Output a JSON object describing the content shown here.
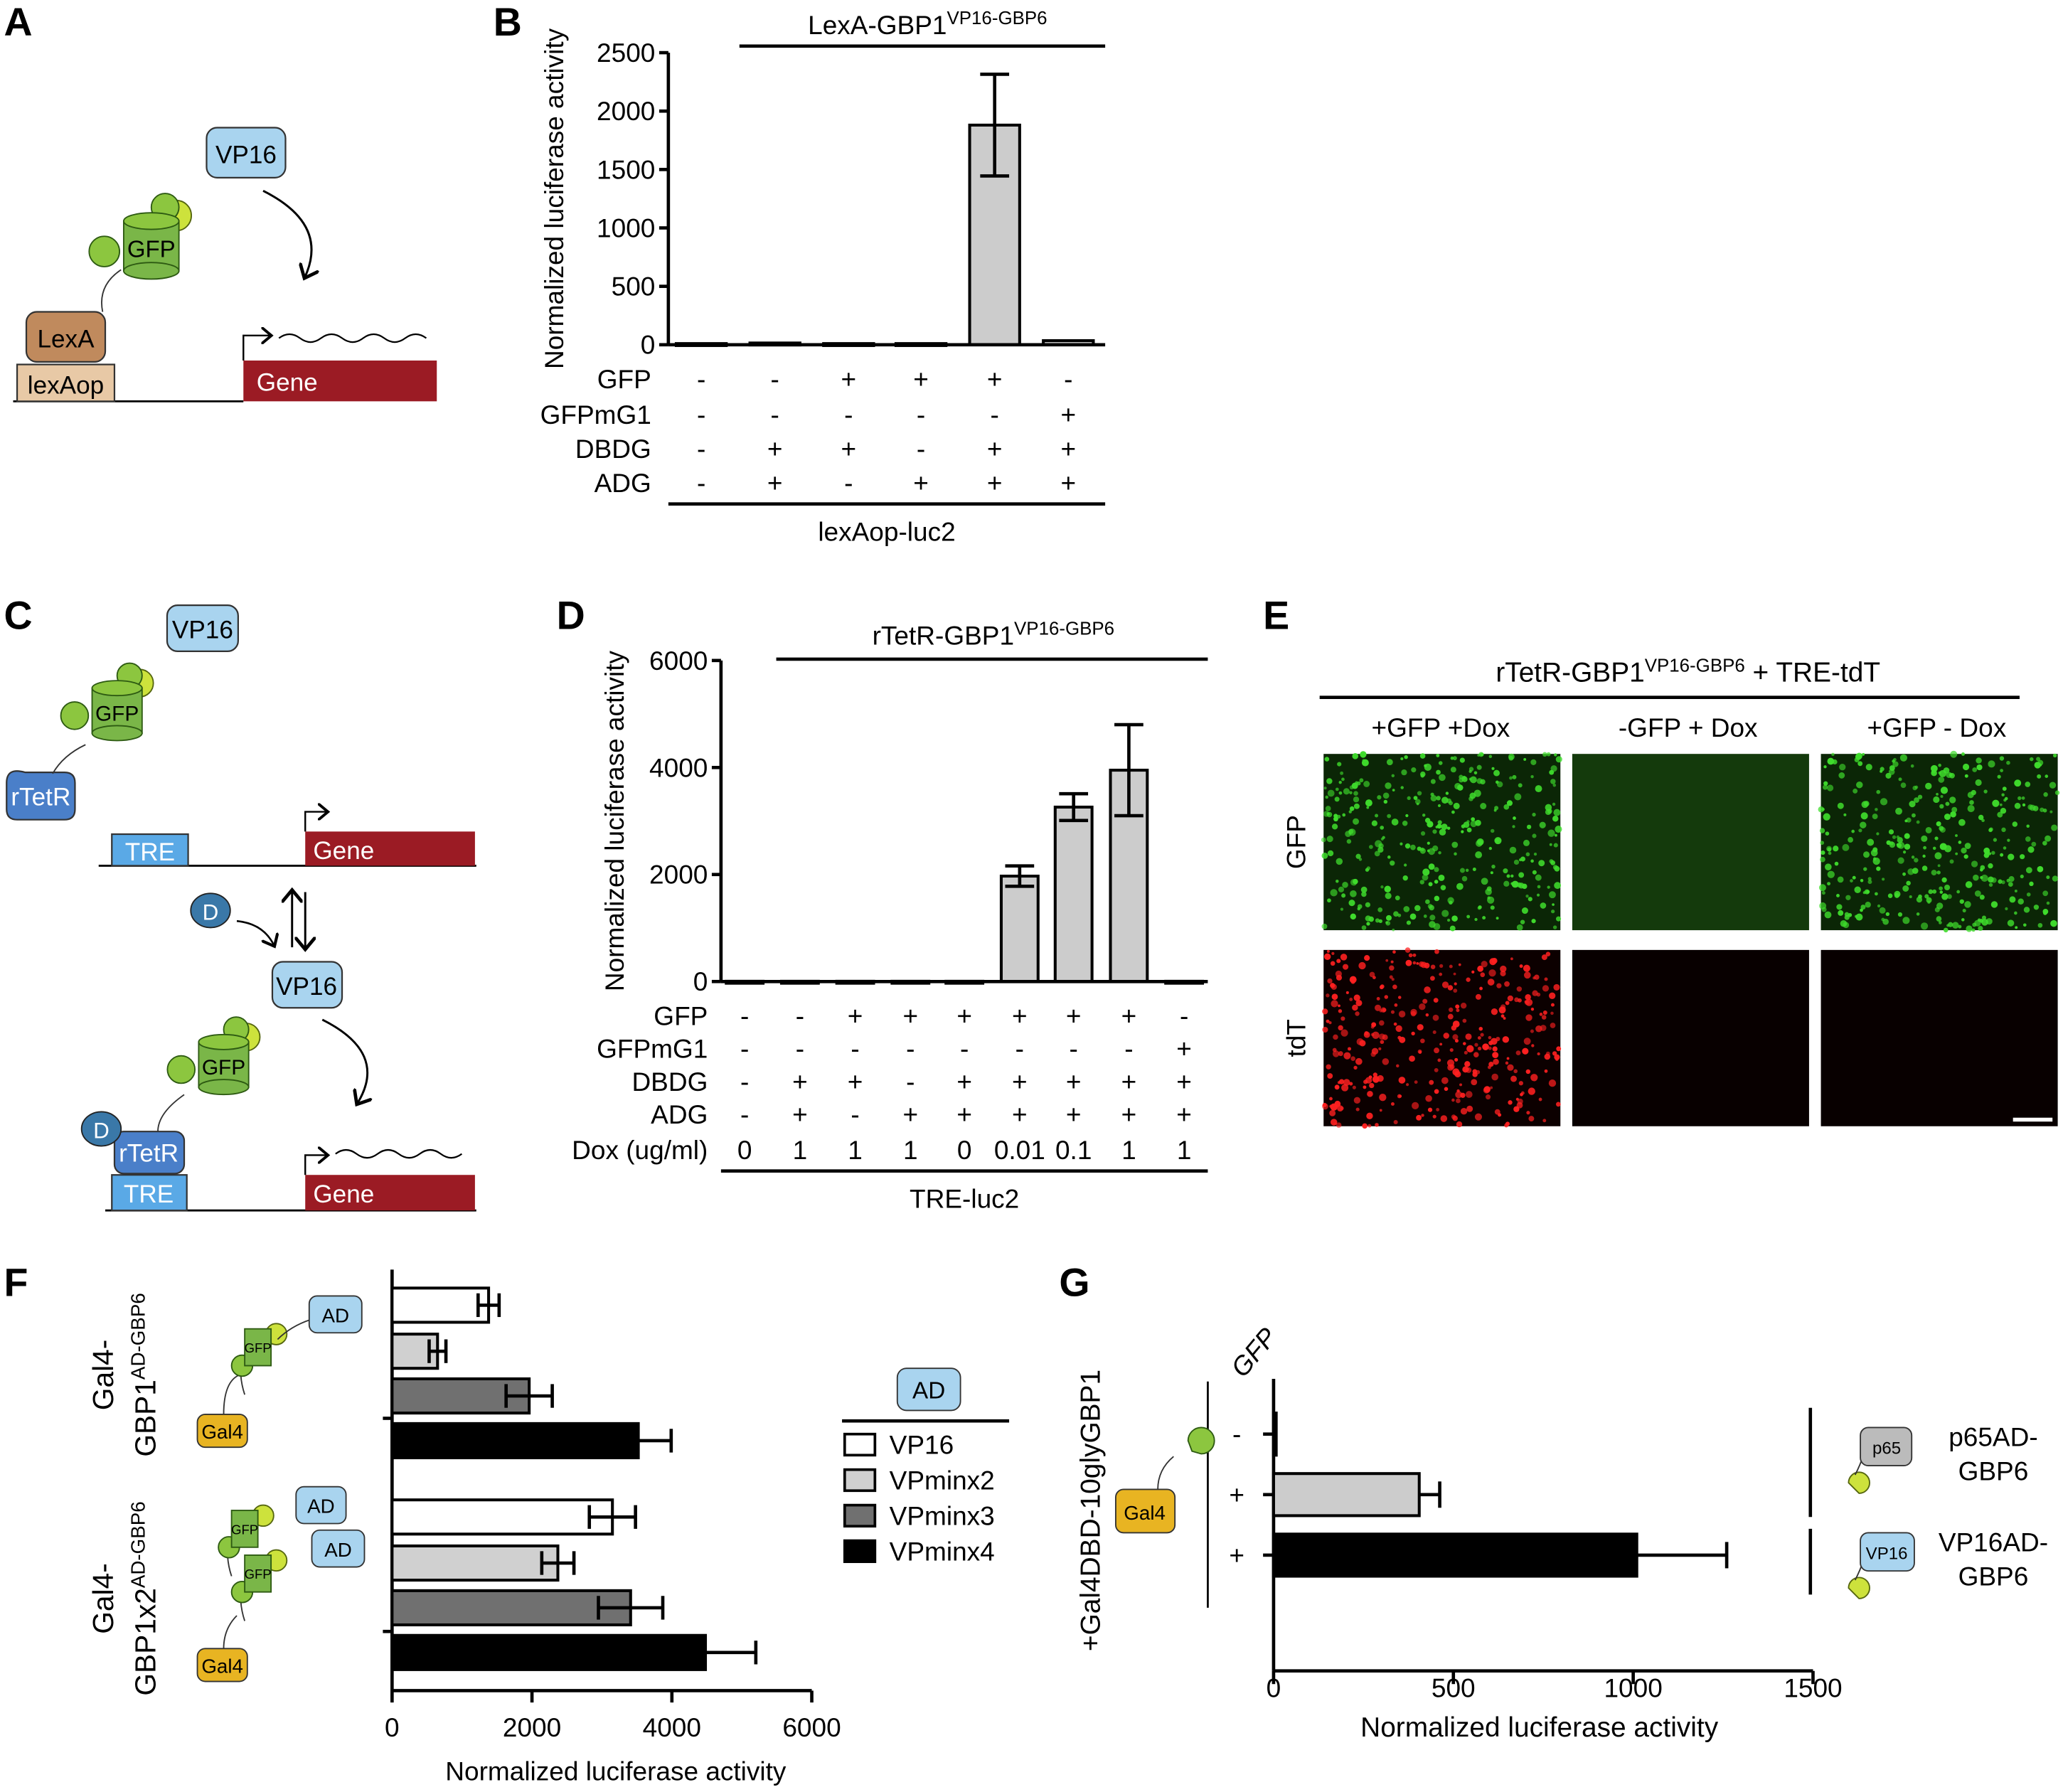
{
  "panel_labels": {
    "A": "A",
    "B": "B",
    "C": "C",
    "D": "D",
    "E": "E",
    "F": "F",
    "G": "G"
  },
  "panel_a": {
    "vp16": "VP16",
    "gfp": "GFP",
    "lexa": "LexA",
    "lexaop": "lexAop",
    "gene": "Gene"
  },
  "panel_c": {
    "vp16": "VP16",
    "gfp": "GFP",
    "rtetr": "rTetR",
    "tre": "TRE",
    "gene": "Gene",
    "dox": "D"
  },
  "panel_e": {
    "title": "rTetR-GBP1",
    "title_sup": "VP16-GBP6",
    "title_suffix": " + TRE-tdT",
    "columns": [
      "+GFP +Dox",
      "-GFP + Dox",
      "+GFP - Dox"
    ],
    "rows": [
      "GFP",
      "tdT"
    ],
    "colors": {
      "gfp": "#3fdc2c",
      "tdt": "#ff2020"
    }
  },
  "chart_data": [
    {
      "id": "B",
      "type": "bar",
      "title": "LexA-GBP1",
      "title_sup": "VP16-GBP6",
      "xlabel": "",
      "ylabel": "Normalized luciferase activity",
      "ylim": [
        0,
        2500
      ],
      "yticks": [
        0,
        500,
        1000,
        1500,
        2000,
        2500
      ],
      "values": [
        10,
        15,
        10,
        10,
        1880,
        35
      ],
      "errors": [
        0,
        0,
        0,
        0,
        435,
        0
      ],
      "conditions": [
        {
          "label": "GFP",
          "values": [
            "-",
            "-",
            "+",
            "+",
            "+",
            "-"
          ]
        },
        {
          "label": "GFPmG1",
          "values": [
            "-",
            "-",
            "-",
            "-",
            "-",
            "+"
          ]
        },
        {
          "label": "DBDG",
          "values": [
            "-",
            "+",
            "+",
            "-",
            "+",
            "+"
          ]
        },
        {
          "label": "ADG",
          "values": [
            "-",
            "+",
            "-",
            "+",
            "+",
            "+"
          ]
        }
      ],
      "footer": "lexAop-luc2",
      "bar_color": "#cccccc",
      "grid": false
    },
    {
      "id": "D",
      "type": "bar",
      "title": "rTetR-GBP1",
      "title_sup": "VP16-GBP6",
      "xlabel": "",
      "ylabel": "Normalized luciferase activity",
      "ylim": [
        0,
        6000
      ],
      "yticks": [
        0,
        2000,
        4000,
        6000
      ],
      "values": [
        5,
        5,
        5,
        5,
        5,
        1970,
        3260,
        3950,
        5
      ],
      "errors": [
        0,
        0,
        0,
        0,
        0,
        190,
        250,
        850,
        0
      ],
      "conditions": [
        {
          "label": "GFP",
          "values": [
            "-",
            "-",
            "+",
            "+",
            "+",
            "+",
            "+",
            "+",
            "-"
          ]
        },
        {
          "label": "GFPmG1",
          "values": [
            "-",
            "-",
            "-",
            "-",
            "-",
            "-",
            "-",
            "-",
            "+"
          ]
        },
        {
          "label": "DBDG",
          "values": [
            "-",
            "+",
            "+",
            "-",
            "+",
            "+",
            "+",
            "+",
            "+"
          ]
        },
        {
          "label": "ADG",
          "values": [
            "-",
            "+",
            "-",
            "+",
            "+",
            "+",
            "+",
            "+",
            "+"
          ]
        },
        {
          "label": "Dox (ug/ml)",
          "values": [
            "0",
            "1",
            "1",
            "1",
            "0",
            "0.01",
            "0.1",
            "1",
            "1"
          ]
        }
      ],
      "footer": "TRE-luc2",
      "bar_color": "#cccccc",
      "grid": false
    },
    {
      "id": "F",
      "type": "bar",
      "orientation": "horizontal",
      "xlabel": "Normalized luciferase activity",
      "xlim": [
        0,
        6000
      ],
      "xticks": [
        0,
        2000,
        4000,
        6000
      ],
      "groups": [
        {
          "line1": "Gal4-",
          "line2": "GBP1",
          "sup": "AD-GBP6"
        },
        {
          "line1": "Gal4-",
          "line2": "GBP1x2",
          "sup": "AD-GBP6"
        }
      ],
      "series": [
        {
          "name": "VP16",
          "values": [
            1380,
            3150
          ],
          "errors": [
            150,
            330
          ],
          "color": "#ffffff"
        },
        {
          "name": "VPminx2",
          "values": [
            650,
            2370
          ],
          "errors": [
            120,
            230
          ],
          "color": "#d0d0d0"
        },
        {
          "name": "VPminx3",
          "values": [
            1960,
            3410
          ],
          "errors": [
            330,
            460
          ],
          "color": "#707070"
        },
        {
          "name": "VPminx4",
          "values": [
            3520,
            4480
          ],
          "errors": [
            470,
            720
          ],
          "color": "#000000"
        }
      ],
      "legend_header": "AD",
      "legend_placement": "right",
      "diagram": {
        "ad": "AD",
        "gfp": "GFP",
        "gal4": "Gal4"
      }
    },
    {
      "id": "G",
      "type": "bar",
      "orientation": "horizontal",
      "xlabel": "Normalized luciferase activity",
      "xlim": [
        0,
        1500
      ],
      "xticks": [
        0,
        500,
        1000,
        1500
      ],
      "ylabel": "+Gal4DBD-10glyGBP1",
      "column_header": "GFP",
      "rows": [
        {
          "gfp": "-",
          "value": 5,
          "error": 0,
          "color": "#000000"
        },
        {
          "gfp": "+",
          "value": 405,
          "error": 57,
          "color": "#cccccc"
        },
        {
          "gfp": "+",
          "value": 1010,
          "error": 250,
          "color": "#000000"
        }
      ],
      "annotations": [
        {
          "icon": "p65",
          "line1": "p65AD-",
          "line2": "GBP6"
        },
        {
          "icon": "VP16",
          "line1": "VP16AD-",
          "line2": "GBP6"
        }
      ],
      "diagram": {
        "gal4": "Gal4"
      }
    }
  ],
  "colors": {
    "gene": "#9b1b24",
    "vp16": "#a9d4ef",
    "gfp": "#7ab648",
    "lexa": "#c08a5d",
    "lexaop": "#e8c9a6",
    "rtetr": "#4a7fc9",
    "tre": "#5aa9e6",
    "gal4": "#e8b422",
    "dox": "#3a78a8"
  }
}
